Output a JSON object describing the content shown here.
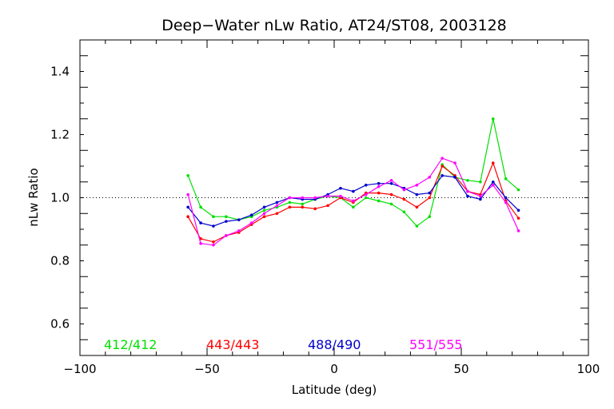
{
  "chart_data": {
    "type": "line",
    "title": "Deep−Water nLw Ratio, AT24/ST08, 2003128",
    "xlabel": "Latitude (deg)",
    "ylabel": "nLw Ratio",
    "xlim": [
      -100,
      100
    ],
    "ylim": [
      0.5,
      1.5
    ],
    "x_ticks": [
      -100,
      -50,
      0,
      50,
      100
    ],
    "x_tick_labels": [
      "−100",
      "−50",
      "0",
      "50",
      "100"
    ],
    "y_ticks": [
      0.6,
      0.8,
      1.0,
      1.2,
      1.4
    ],
    "y_tick_labels": [
      "0.6",
      "0.8",
      "1.0",
      "1.2",
      "1.4"
    ],
    "reference_line": 1.0,
    "grid": false,
    "legend_position": "bottom",
    "series": [
      {
        "name": "412/412",
        "color": "#00e000",
        "x": [
          -57.5,
          -52.5,
          -47.5,
          -42.5,
          -37.5,
          -32.5,
          -27.5,
          -22.5,
          -17.5,
          -12.5,
          -7.5,
          -2.5,
          2.5,
          7.5,
          12.5,
          17.5,
          22.5,
          27.5,
          32.5,
          37.5,
          42.5,
          47.5,
          52.5,
          57.5,
          62.5,
          67.5,
          72.5
        ],
        "y": [
          1.07,
          0.97,
          0.94,
          0.94,
          0.93,
          0.94,
          0.96,
          0.97,
          0.985,
          0.98,
          0.995,
          1.005,
          1.0,
          0.97,
          1.0,
          0.99,
          0.98,
          0.955,
          0.91,
          0.94,
          1.105,
          1.065,
          1.055,
          1.05,
          1.25,
          1.06,
          1.025
        ]
      },
      {
        "name": "443/443",
        "color": "#ff0000",
        "x": [
          -57.5,
          -52.5,
          -47.5,
          -42.5,
          -37.5,
          -32.5,
          -27.5,
          -22.5,
          -17.5,
          -12.5,
          -7.5,
          -2.5,
          2.5,
          7.5,
          12.5,
          17.5,
          22.5,
          27.5,
          32.5,
          37.5,
          42.5,
          47.5,
          52.5,
          57.5,
          62.5,
          67.5,
          72.5
        ],
        "y": [
          0.94,
          0.87,
          0.86,
          0.88,
          0.89,
          0.915,
          0.94,
          0.95,
          0.97,
          0.97,
          0.965,
          0.975,
          1.0,
          0.985,
          1.015,
          1.015,
          1.01,
          0.995,
          0.97,
          1.0,
          1.1,
          1.07,
          1.02,
          1.01,
          1.11,
          0.99,
          0.935
        ]
      },
      {
        "name": "488/490",
        "color": "#0000cc",
        "x": [
          -57.5,
          -52.5,
          -47.5,
          -42.5,
          -37.5,
          -32.5,
          -27.5,
          -22.5,
          -17.5,
          -12.5,
          -7.5,
          -2.5,
          2.5,
          7.5,
          12.5,
          17.5,
          22.5,
          27.5,
          32.5,
          37.5,
          42.5,
          47.5,
          52.5,
          57.5,
          62.5,
          67.5,
          72.5
        ],
        "y": [
          0.97,
          0.92,
          0.91,
          0.925,
          0.93,
          0.945,
          0.97,
          0.985,
          1.0,
          0.995,
          0.995,
          1.01,
          1.03,
          1.02,
          1.04,
          1.045,
          1.045,
          1.03,
          1.01,
          1.015,
          1.07,
          1.065,
          1.005,
          0.995,
          1.05,
          1.0,
          0.96
        ]
      },
      {
        "name": "551/555",
        "color": "#ff00ff",
        "x": [
          -57.5,
          -52.5,
          -47.5,
          -42.5,
          -37.5,
          -32.5,
          -27.5,
          -22.5,
          -17.5,
          -12.5,
          -7.5,
          -2.5,
          2.5,
          7.5,
          12.5,
          17.5,
          22.5,
          27.5,
          32.5,
          37.5,
          42.5,
          47.5,
          52.5,
          57.5,
          62.5,
          67.5,
          72.5
        ],
        "y": [
          1.01,
          0.855,
          0.85,
          0.88,
          0.895,
          0.92,
          0.95,
          0.975,
          1.0,
          1.0,
          1.0,
          1.005,
          1.005,
          0.99,
          1.01,
          1.035,
          1.055,
          1.025,
          1.04,
          1.065,
          1.125,
          1.11,
          1.02,
          1.005,
          1.04,
          0.985,
          0.895
        ]
      }
    ]
  }
}
